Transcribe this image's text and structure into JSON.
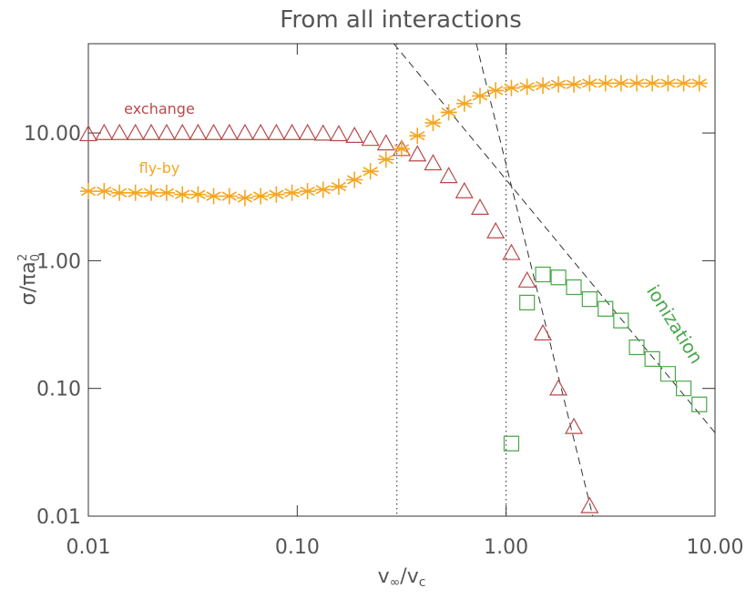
{
  "chart_data": {
    "type": "scatter",
    "title": "From all interactions",
    "x_label": [
      "v",
      "∞",
      "/v",
      "c"
    ],
    "y_label": [
      "σ/πa",
      "0",
      "2"
    ],
    "log_x": true,
    "log_y": true,
    "xlim": [
      0.01,
      10
    ],
    "ylim": [
      0.01,
      50
    ],
    "xticks": [
      {
        "value": 0.01,
        "label": "0.01"
      },
      {
        "value": 0.1,
        "label": "0.10"
      },
      {
        "value": 1,
        "label": "1.00"
      },
      {
        "value": 10,
        "label": "10.00"
      }
    ],
    "yticks": [
      {
        "value": 0.01,
        "label": "0.01"
      },
      {
        "value": 0.1,
        "label": "0.10"
      },
      {
        "value": 1,
        "label": "1.00"
      },
      {
        "value": 10,
        "label": "10.00"
      }
    ],
    "vlines": [
      0.3,
      1
    ],
    "reference_lines": [
      {
        "x": [
          0.29,
          10
        ],
        "y": [
          50,
          0.045
        ]
      },
      {
        "x": [
          0.72,
          2.6
        ],
        "y": [
          50,
          0.01
        ]
      }
    ],
    "series": [
      {
        "name": "exchange",
        "color": "#b84a4a",
        "marker": "triangle",
        "x": [
          0.01,
          0.0119,
          0.0141,
          0.0168,
          0.02,
          0.0237,
          0.0282,
          0.0335,
          0.0398,
          0.0473,
          0.0562,
          0.0668,
          0.0794,
          0.0944,
          0.112,
          0.133,
          0.158,
          0.188,
          0.224,
          0.266,
          0.316,
          0.376,
          0.447,
          0.531,
          0.631,
          0.75,
          0.891,
          1.06,
          1.26,
          1.5,
          1.78,
          2.11,
          2.51
        ],
        "values": [
          9.8,
          10,
          10,
          10,
          10,
          10,
          10,
          10,
          10,
          10,
          10,
          10,
          10,
          10,
          10,
          9.9,
          9.8,
          9.5,
          9.0,
          8.3,
          7.5,
          6.8,
          5.8,
          4.6,
          3.5,
          2.6,
          1.7,
          1.15,
          0.7,
          0.27,
          0.1,
          0.05,
          0.012
        ]
      },
      {
        "name": "fly-by",
        "color": "#f5a623",
        "marker": "asterisk",
        "x": [
          0.01,
          0.0119,
          0.0141,
          0.0168,
          0.02,
          0.0237,
          0.0282,
          0.0335,
          0.0398,
          0.0473,
          0.0562,
          0.0668,
          0.0794,
          0.0944,
          0.112,
          0.133,
          0.158,
          0.188,
          0.224,
          0.266,
          0.316,
          0.376,
          0.447,
          0.531,
          0.631,
          0.75,
          0.891,
          1.06,
          1.26,
          1.5,
          1.78,
          2.11,
          2.51,
          2.99,
          3.55,
          4.22,
          5.01,
          5.96,
          7.08,
          8.41
        ],
        "values": [
          3.5,
          3.5,
          3.4,
          3.4,
          3.4,
          3.4,
          3.3,
          3.3,
          3.2,
          3.2,
          3.1,
          3.2,
          3.3,
          3.4,
          3.5,
          3.6,
          3.8,
          4.3,
          5.0,
          6.2,
          7.5,
          9.5,
          12,
          14.5,
          17,
          19.5,
          21.5,
          22.5,
          23,
          23.5,
          24,
          24,
          24.5,
          24.5,
          24.5,
          24.5,
          24.5,
          24.5,
          24.5,
          24.5
        ]
      },
      {
        "name": "ionization",
        "color": "#4aa84a",
        "marker": "square",
        "x": [
          1.06,
          1.26,
          1.5,
          1.78,
          2.11,
          2.51,
          2.99,
          3.55,
          4.22,
          5.01,
          5.96,
          7.08,
          8.41
        ],
        "values": [
          0.037,
          0.47,
          0.78,
          0.74,
          0.62,
          0.5,
          0.42,
          0.34,
          0.21,
          0.17,
          0.13,
          0.1,
          0.075
        ]
      }
    ]
  }
}
